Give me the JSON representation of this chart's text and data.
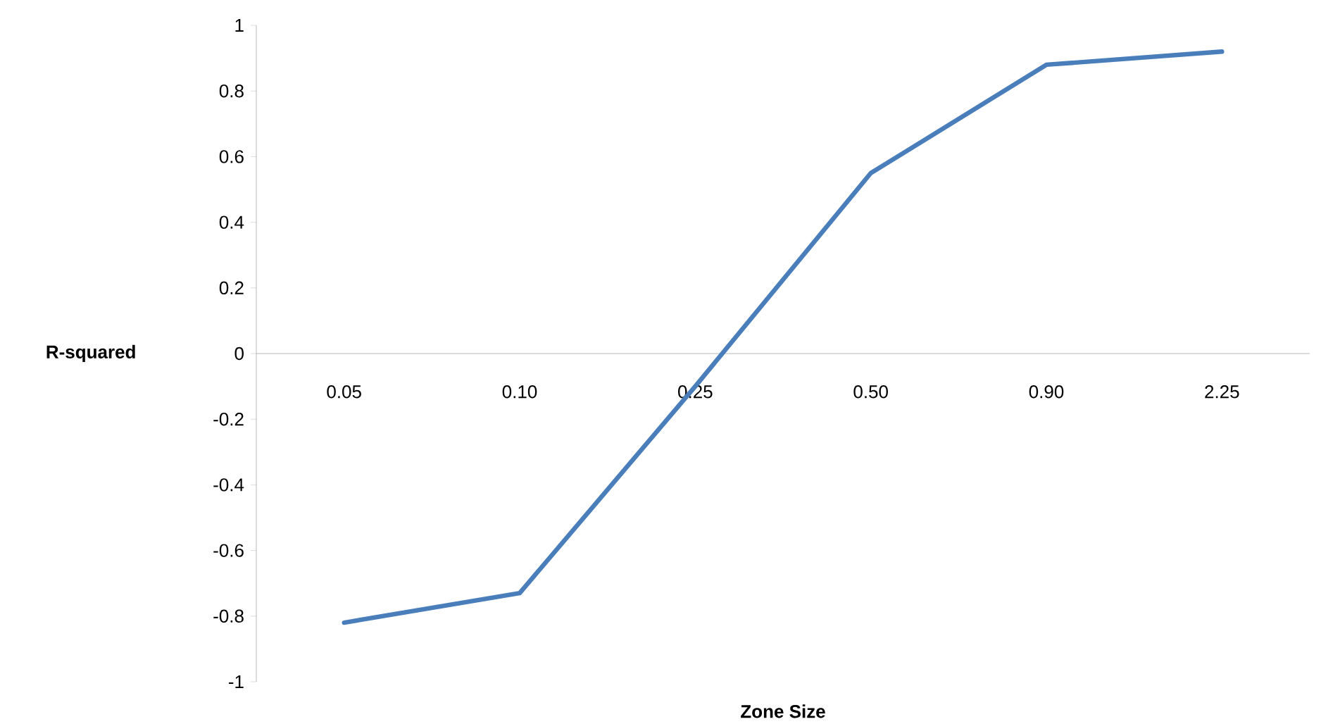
{
  "chart_data": {
    "type": "line",
    "xlabel": "Zone Size",
    "ylabel": "R-squared",
    "categories": [
      "0.05",
      "0.10",
      "0.25",
      "0.50",
      "0.90",
      "2.25"
    ],
    "values": [
      -0.82,
      -0.73,
      -0.1,
      0.55,
      0.88,
      0.92
    ],
    "color": "#4a7ebb",
    "ylim": [
      -1,
      1
    ],
    "yticks": [
      -1,
      -0.8,
      -0.6,
      -0.4,
      -0.2,
      0,
      0.2,
      0.4,
      0.6,
      0.8,
      1
    ]
  }
}
